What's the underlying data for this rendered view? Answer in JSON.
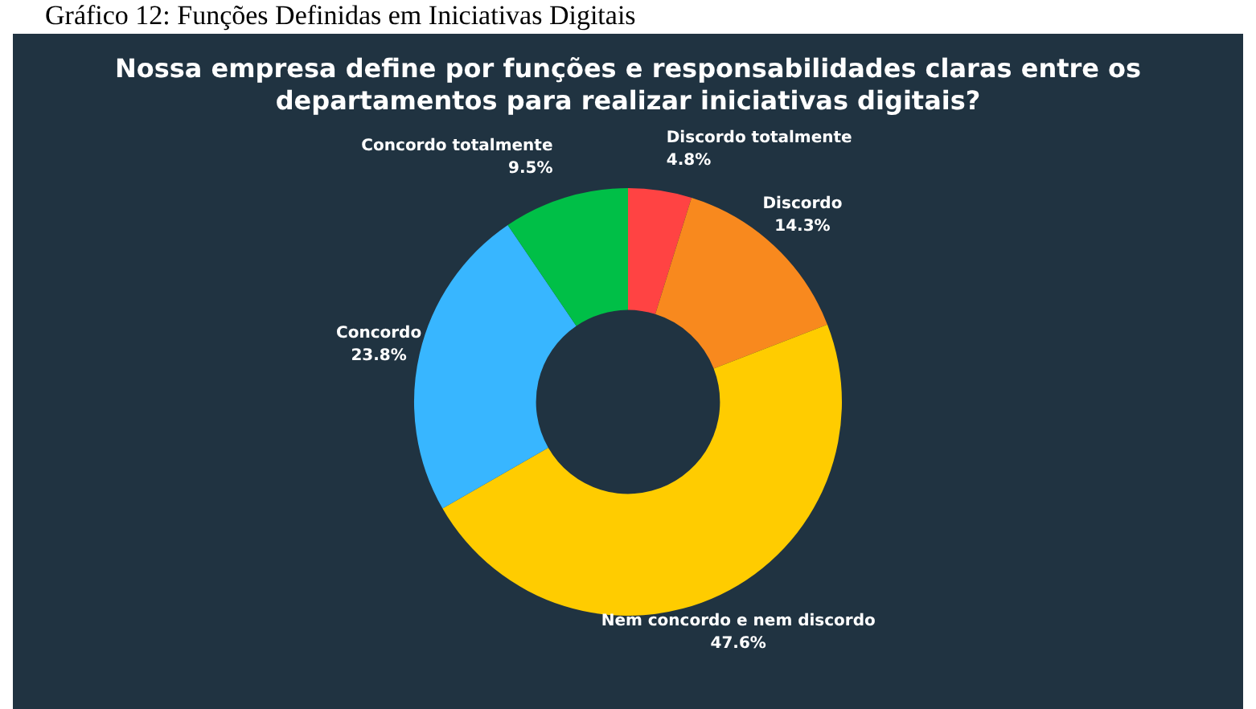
{
  "chart_data": {
    "type": "donut",
    "title": "Nossa empresa define por funções e responsabilidades claras entre os departamentos para realizar iniciativas digitais?",
    "annotations": [
      "Gráfico 12: Funções Definidas em Iniciativas Digitais"
    ],
    "categories": [
      "Discordo totalmente",
      "Discordo",
      "Nem concordo e nem discordo",
      "Concordo",
      "Concordo totalmente"
    ],
    "values": [
      4.8,
      14.3,
      47.6,
      23.8,
      9.5
    ],
    "value_labels": [
      "4.8%",
      "14.3%",
      "47.6%",
      "23.8%",
      "9.5%"
    ],
    "colors": [
      "#ff4343",
      "#f8891e",
      "#ffcc00",
      "#38b6ff",
      "#00bf47"
    ],
    "legend": false
  }
}
